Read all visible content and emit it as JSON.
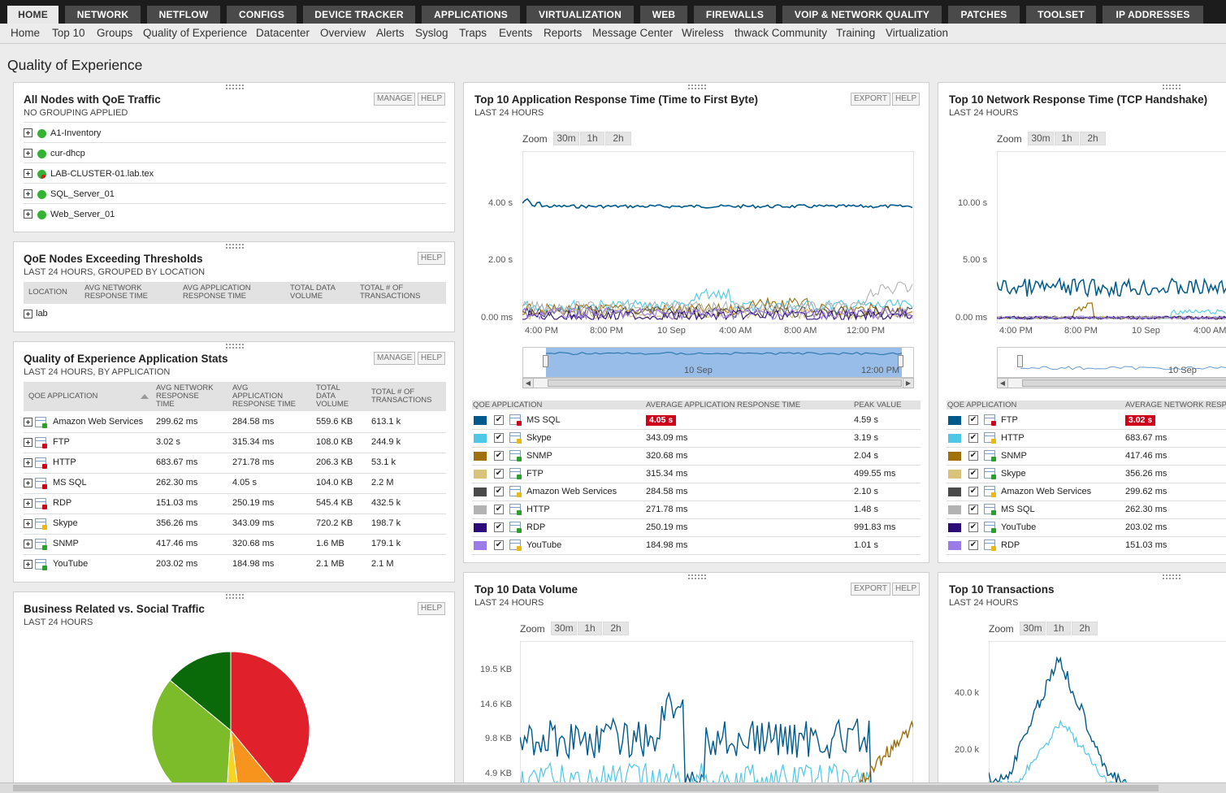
{
  "nav": {
    "tabs": [
      "HOME",
      "NETWORK",
      "NETFLOW",
      "CONFIGS",
      "DEVICE TRACKER",
      "APPLICATIONS",
      "VIRTUALIZATION",
      "WEB",
      "FIREWALLS",
      "VOIP & NETWORK QUALITY",
      "PATCHES",
      "TOOLSET",
      "IP ADDRESSES"
    ],
    "sub": [
      "Home",
      "Top 10",
      "Groups",
      "Quality of Experience",
      "Datacenter",
      "Overview",
      "Alerts",
      "Syslog",
      "Traps",
      "Events",
      "Reports",
      "Message Center",
      "Wireless",
      "thwack Community",
      "Training",
      "Virtualization"
    ]
  },
  "page": {
    "title": "Quality of Experience"
  },
  "buttons": {
    "manage": "MANAGE",
    "help": "HELP",
    "export": "EXPORT"
  },
  "nodes": {
    "title": "All Nodes with QoE Traffic",
    "subtitle": "NO GROUPING APPLIED",
    "items": [
      "A1-Inventory",
      "cur-dhcp",
      "LAB-CLUSTER-01.lab.tex",
      "SQL_Server_01",
      "Web_Server_01"
    ]
  },
  "thresholds": {
    "title": "QoE Nodes Exceeding Thresholds",
    "subtitle": "LAST 24 HOURS, GROUPED BY LOCATION",
    "cols": [
      "LOCATION",
      "AVG NETWORK\nRESPONSE TIME",
      "AVG APPLICATION\nRESPONSE TIME",
      "TOTAL DATA\nVOLUME",
      "TOTAL # OF\nTRANSACTIONS"
    ],
    "rows": [
      "lab"
    ]
  },
  "stats": {
    "title": "Quality of Experience Application Stats",
    "subtitle": "LAST 24 HOURS, BY APPLICATION",
    "cols": [
      "QOE APPLICATION",
      "AVG NETWORK\nRESPONSE\nTIME",
      "AVG\nAPPLICATION\nRESPONSE TIME",
      "TOTAL\nDATA\nVOLUME",
      "TOTAL # OF\nTRANSACTIONS"
    ],
    "rows": [
      [
        "Amazon Web Services",
        "299.62 ms",
        "284.58 ms",
        "559.6 KB",
        "613.1 k"
      ],
      [
        "FTP",
        "3.02 s",
        "315.34 ms",
        "108.0 KB",
        "244.9 k"
      ],
      [
        "HTTP",
        "683.67 ms",
        "271.78 ms",
        "206.3 KB",
        "53.1 k"
      ],
      [
        "MS SQL",
        "262.30 ms",
        "4.05 s",
        "104.0 KB",
        "2.2 M"
      ],
      [
        "RDP",
        "151.03 ms",
        "250.19 ms",
        "545.4 KB",
        "432.5 k"
      ],
      [
        "Skype",
        "356.26 ms",
        "343.09 ms",
        "720.2 KB",
        "198.7 k"
      ],
      [
        "SNMP",
        "417.46 ms",
        "320.68 ms",
        "1.6 MB",
        "179.1 k"
      ],
      [
        "YouTube",
        "203.02 ms",
        "184.98 ms",
        "2.1 MB",
        "2.1 M"
      ]
    ]
  },
  "business": {
    "title": "Business Related vs. Social Traffic",
    "subtitle": "LAST 24 HOURS"
  },
  "appresp": {
    "title": "Top 10 Application Response Time (Time to First Byte)",
    "subtitle": "LAST 24 HOURS",
    "zoom": "Zoom",
    "zooms": [
      "30m",
      "1h",
      "2h"
    ],
    "yticks": [
      "4.00 s",
      "2.00 s",
      "0.00 ms"
    ],
    "xticks": [
      "4:00 PM",
      "8:00 PM",
      "10 Sep",
      "4:00 AM",
      "8:00 AM",
      "12:00 PM"
    ],
    "nav_labels": [
      "10 Sep",
      "12:00 PM"
    ],
    "cols": [
      "QOE APPLICATION",
      "AVERAGE APPLICATION RESPONSE TIME",
      "PEAK VALUE"
    ],
    "rows": [
      [
        "MS SQL",
        "4.05 s",
        "4.59 s",
        "#005a8c"
      ],
      [
        "Skype",
        "343.09 ms",
        "3.19 s",
        "#4fc8e8"
      ],
      [
        "SNMP",
        "320.68 ms",
        "2.04 s",
        "#a0700a"
      ],
      [
        "FTP",
        "315.34 ms",
        "499.55 ms",
        "#d9c27a"
      ],
      [
        "Amazon Web Services",
        "284.58 ms",
        "2.10 s",
        "#4a4a4a"
      ],
      [
        "HTTP",
        "271.78 ms",
        "1.48 s",
        "#b3b3b3"
      ],
      [
        "RDP",
        "250.19 ms",
        "991.83 ms",
        "#2d0a7a"
      ],
      [
        "YouTube",
        "184.98 ms",
        "1.01 s",
        "#9b7be8"
      ]
    ]
  },
  "netresp": {
    "title": "Top 10 Network Response Time (TCP Handshake)",
    "subtitle": "LAST 24 HOURS",
    "zoom": "Zoom",
    "zooms": [
      "30m",
      "1h",
      "2h"
    ],
    "yticks": [
      "10.00 s",
      "5.00 s",
      "0.00 ms"
    ],
    "xticks": [
      "4:00 PM",
      "8:00 PM",
      "10 Sep",
      "4:00 AM"
    ],
    "nav_labels": [
      "10 Sep"
    ],
    "cols": [
      "QOE APPLICATION",
      "AVERAGE NETWORK RESP"
    ],
    "rows": [
      [
        "FTP",
        "3.02 s",
        "#005a8c"
      ],
      [
        "HTTP",
        "683.67 ms",
        "#4fc8e8"
      ],
      [
        "SNMP",
        "417.46 ms",
        "#a0700a"
      ],
      [
        "Skype",
        "356.26 ms",
        "#d9c27a"
      ],
      [
        "Amazon Web Services",
        "299.62 ms",
        "#4a4a4a"
      ],
      [
        "MS SQL",
        "262.30 ms",
        "#b3b3b3"
      ],
      [
        "YouTube",
        "203.02 ms",
        "#2d0a7a"
      ],
      [
        "RDP",
        "151.03 ms",
        "#9b7be8"
      ]
    ]
  },
  "datavol": {
    "title": "Top 10 Data Volume",
    "subtitle": "LAST 24 HOURS",
    "zoom": "Zoom",
    "zooms": [
      "30m",
      "1h",
      "2h"
    ],
    "yticks": [
      "19.5 KB",
      "14.6 KB",
      "9.8 KB",
      "4.9 KB"
    ]
  },
  "transactions": {
    "title": "Top 10 Transactions",
    "subtitle": "LAST 24 HOURS",
    "zoom": "Zoom",
    "zooms": [
      "30m",
      "1h",
      "2h"
    ],
    "yticks": [
      "40.0 k",
      "20.0 k"
    ]
  },
  "pie": {
    "slices": [
      {
        "value": 0.39,
        "color": "#e0202a"
      },
      {
        "value": 0.09,
        "color": "#f7941d"
      },
      {
        "value": 0.03,
        "color": "#f5d423"
      },
      {
        "value": 0.35,
        "color": "#7cbb2a"
      },
      {
        "value": 0.14,
        "color": "#0a6a0a"
      }
    ]
  }
}
